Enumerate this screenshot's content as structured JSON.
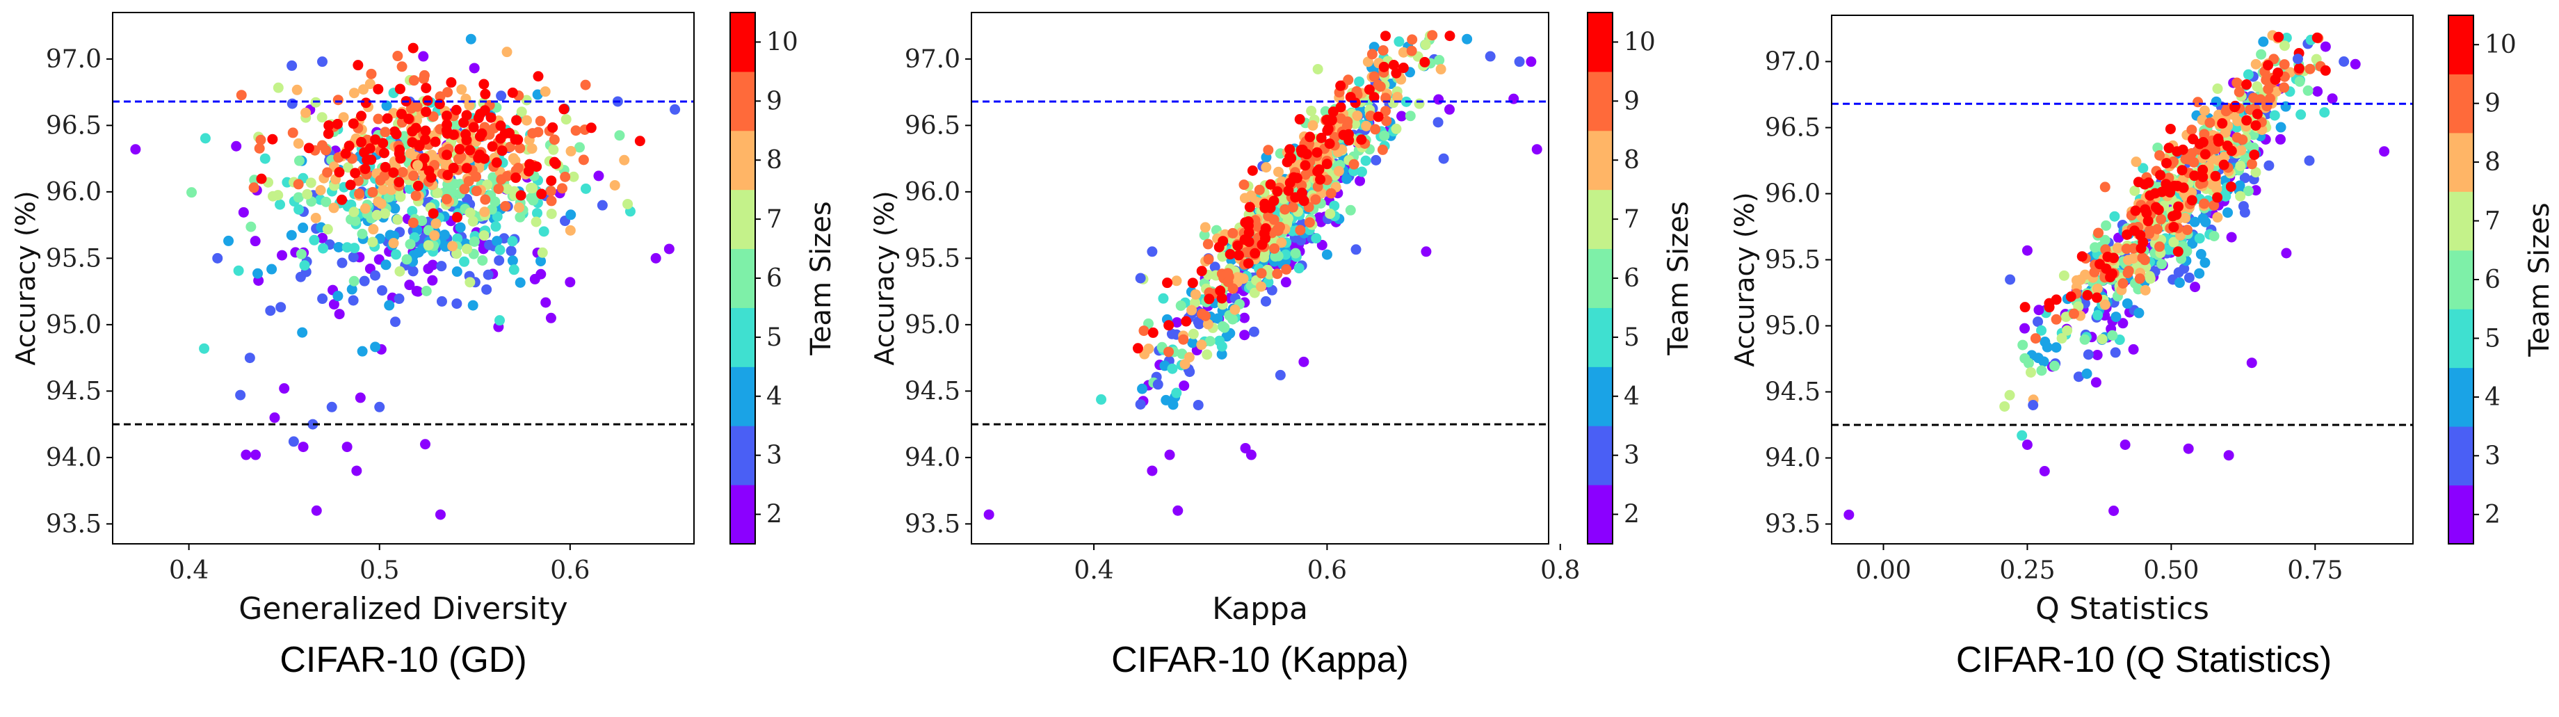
{
  "figure": {
    "colorbar_title": "Team Sizes",
    "colorbar_levels": [
      2,
      3,
      4,
      5,
      6,
      7,
      8,
      9,
      10
    ],
    "colorbar_colors": [
      "#8b00ff",
      "#4a5ff5",
      "#1aa3e6",
      "#3fe0d0",
      "#7ef0a8",
      "#c4f28a",
      "#ffb566",
      "#ff6a3a",
      "#ff0000"
    ],
    "reference_line_colors": {
      "blue": "#0000ff",
      "black": "#000000"
    }
  },
  "chart_data": [
    {
      "type": "scatter",
      "caption": "CIFAR-10 (GD)",
      "xlabel": "Generalized Diversity",
      "ylabel": "Accuracy (%)",
      "xlim": [
        0.36,
        0.665
      ],
      "ylim": [
        93.35,
        97.35
      ],
      "xticks": [
        0.4,
        0.5,
        0.6
      ],
      "xtick_labels": [
        "0.4",
        "0.5",
        "0.6"
      ],
      "yticks": [
        93.5,
        94.0,
        94.5,
        95.0,
        95.5,
        96.0,
        96.5,
        97.0
      ],
      "ytick_labels": [
        "93.5",
        "94.0",
        "94.5",
        "95.0",
        "95.5",
        "96.0",
        "96.5",
        "97.0"
      ],
      "hlines": [
        {
          "y": 96.68,
          "color": "blue",
          "style": "dashed"
        },
        {
          "y": 94.25,
          "color": "black",
          "style": "dashed"
        }
      ],
      "points": [
        {
          "x": 0.372,
          "y": 96.32,
          "team": 2
        },
        {
          "x": 0.408,
          "y": 94.82,
          "team": 5
        },
        {
          "x": 0.415,
          "y": 95.5,
          "team": 3
        },
        {
          "x": 0.427,
          "y": 94.47,
          "team": 3
        },
        {
          "x": 0.43,
          "y": 94.02,
          "team": 2
        },
        {
          "x": 0.435,
          "y": 94.02,
          "team": 2
        },
        {
          "x": 0.432,
          "y": 94.75,
          "team": 3
        },
        {
          "x": 0.44,
          "y": 96.25,
          "team": 5
        },
        {
          "x": 0.445,
          "y": 94.3,
          "team": 2
        },
        {
          "x": 0.45,
          "y": 94.52,
          "team": 2
        },
        {
          "x": 0.455,
          "y": 94.12,
          "team": 3
        },
        {
          "x": 0.46,
          "y": 94.08,
          "team": 2
        },
        {
          "x": 0.463,
          "y": 96.33,
          "team": 10
        },
        {
          "x": 0.47,
          "y": 96.35,
          "team": 9
        },
        {
          "x": 0.467,
          "y": 93.6,
          "team": 2
        },
        {
          "x": 0.465,
          "y": 94.25,
          "team": 3
        },
        {
          "x": 0.475,
          "y": 94.38,
          "team": 3
        },
        {
          "x": 0.483,
          "y": 94.08,
          "team": 2
        },
        {
          "x": 0.488,
          "y": 93.9,
          "team": 2
        },
        {
          "x": 0.49,
          "y": 94.45,
          "team": 2
        },
        {
          "x": 0.5,
          "y": 94.38,
          "team": 3
        },
        {
          "x": 0.503,
          "y": 96.45,
          "team": 9
        },
        {
          "x": 0.52,
          "y": 96.2,
          "team": 8
        },
        {
          "x": 0.524,
          "y": 94.1,
          "team": 2
        },
        {
          "x": 0.532,
          "y": 93.57,
          "team": 2
        },
        {
          "x": 0.548,
          "y": 97.15,
          "team": 4
        },
        {
          "x": 0.47,
          "y": 96.98,
          "team": 3
        },
        {
          "x": 0.454,
          "y": 96.95,
          "team": 3
        },
        {
          "x": 0.523,
          "y": 97.02,
          "team": 2
        },
        {
          "x": 0.555,
          "y": 96.25,
          "team": 10
        },
        {
          "x": 0.615,
          "y": 96.12,
          "team": 2
        },
        {
          "x": 0.625,
          "y": 96.68,
          "team": 3
        },
        {
          "x": 0.645,
          "y": 95.5,
          "team": 2
        },
        {
          "x": 0.652,
          "y": 95.57,
          "team": 2
        },
        {
          "x": 0.655,
          "y": 96.62,
          "team": 3
        },
        {
          "x": 0.6,
          "y": 95.32,
          "team": 2
        },
        {
          "x": 0.59,
          "y": 95.05,
          "team": 2
        }
      ]
    },
    {
      "type": "scatter",
      "caption": "CIFAR-10 (Kappa)",
      "xlabel": "Kappa",
      "ylabel": "Accuracy (%)",
      "xlim": [
        0.295,
        0.79
      ],
      "ylim": [
        93.35,
        97.35
      ],
      "xticks": [
        0.4,
        0.6,
        0.8
      ],
      "xtick_labels": [
        "0.4",
        "0.6",
        "0.8"
      ],
      "yticks": [
        93.5,
        94.0,
        94.5,
        95.0,
        95.5,
        96.0,
        96.5,
        97.0
      ],
      "ytick_labels": [
        "93.5",
        "94.0",
        "94.5",
        "95.0",
        "95.5",
        "96.0",
        "96.5",
        "97.0"
      ],
      "hlines": [
        {
          "y": 96.68,
          "color": "blue",
          "style": "dashed"
        },
        {
          "y": 94.25,
          "color": "black",
          "style": "dashed"
        }
      ],
      "points": [
        {
          "x": 0.31,
          "y": 93.57,
          "team": 2
        },
        {
          "x": 0.472,
          "y": 93.6,
          "team": 2
        },
        {
          "x": 0.45,
          "y": 93.9,
          "team": 2
        },
        {
          "x": 0.465,
          "y": 94.02,
          "team": 2
        },
        {
          "x": 0.53,
          "y": 94.07,
          "team": 2
        },
        {
          "x": 0.535,
          "y": 94.02,
          "team": 2
        },
        {
          "x": 0.44,
          "y": 94.4,
          "team": 3
        },
        {
          "x": 0.455,
          "y": 94.55,
          "team": 3
        },
        {
          "x": 0.56,
          "y": 94.62,
          "team": 3
        },
        {
          "x": 0.58,
          "y": 94.72,
          "team": 2
        },
        {
          "x": 0.44,
          "y": 95.35,
          "team": 3
        },
        {
          "x": 0.45,
          "y": 95.55,
          "team": 3
        },
        {
          "x": 0.568,
          "y": 96.32,
          "team": 10
        },
        {
          "x": 0.72,
          "y": 97.15,
          "team": 4
        },
        {
          "x": 0.74,
          "y": 97.02,
          "team": 3
        },
        {
          "x": 0.765,
          "y": 96.98,
          "team": 3
        },
        {
          "x": 0.775,
          "y": 96.98,
          "team": 2
        },
        {
          "x": 0.78,
          "y": 96.32,
          "team": 2
        },
        {
          "x": 0.685,
          "y": 95.55,
          "team": 2
        },
        {
          "x": 0.7,
          "y": 96.25,
          "team": 3
        },
        {
          "x": 0.705,
          "y": 96.62,
          "team": 2
        },
        {
          "x": 0.76,
          "y": 96.7,
          "team": 2
        }
      ]
    },
    {
      "type": "scatter",
      "caption": "CIFAR-10 (Q Statistics)",
      "xlabel": "Q Statistics",
      "ylabel": "Accuracy (%)",
      "xlim": [
        -0.09,
        0.92
      ],
      "ylim": [
        93.35,
        97.35
      ],
      "xticks": [
        0.0,
        0.25,
        0.5,
        0.75
      ],
      "xtick_labels": [
        "0.00",
        "0.25",
        "0.50",
        "0.75"
      ],
      "yticks": [
        93.5,
        94.0,
        94.5,
        95.0,
        95.5,
        96.0,
        96.5,
        97.0
      ],
      "ytick_labels": [
        "93.5",
        "94.0",
        "94.5",
        "95.0",
        "95.5",
        "96.0",
        "96.5",
        "97.0"
      ],
      "hlines": [
        {
          "y": 96.68,
          "color": "blue",
          "style": "dashed"
        },
        {
          "y": 94.25,
          "color": "black",
          "style": "dashed"
        }
      ],
      "points": [
        {
          "x": -0.06,
          "y": 93.57,
          "team": 2
        },
        {
          "x": 0.28,
          "y": 93.9,
          "team": 2
        },
        {
          "x": 0.4,
          "y": 93.6,
          "team": 2
        },
        {
          "x": 0.25,
          "y": 94.1,
          "team": 2
        },
        {
          "x": 0.42,
          "y": 94.1,
          "team": 2
        },
        {
          "x": 0.53,
          "y": 94.07,
          "team": 2
        },
        {
          "x": 0.6,
          "y": 94.02,
          "team": 2
        },
        {
          "x": 0.22,
          "y": 95.35,
          "team": 3
        },
        {
          "x": 0.25,
          "y": 95.57,
          "team": 2
        },
        {
          "x": 0.27,
          "y": 95.12,
          "team": 2
        },
        {
          "x": 0.26,
          "y": 94.4,
          "team": 3
        },
        {
          "x": 0.51,
          "y": 96.32,
          "team": 10
        },
        {
          "x": 0.66,
          "y": 97.15,
          "team": 4
        },
        {
          "x": 0.72,
          "y": 97.02,
          "team": 3
        },
        {
          "x": 0.8,
          "y": 97.0,
          "team": 3
        },
        {
          "x": 0.82,
          "y": 96.98,
          "team": 2
        },
        {
          "x": 0.87,
          "y": 96.32,
          "team": 2
        },
        {
          "x": 0.7,
          "y": 95.55,
          "team": 2
        },
        {
          "x": 0.64,
          "y": 94.72,
          "team": 2
        },
        {
          "x": 0.74,
          "y": 96.25,
          "team": 3
        },
        {
          "x": 0.78,
          "y": 96.72,
          "team": 2
        }
      ]
    }
  ]
}
